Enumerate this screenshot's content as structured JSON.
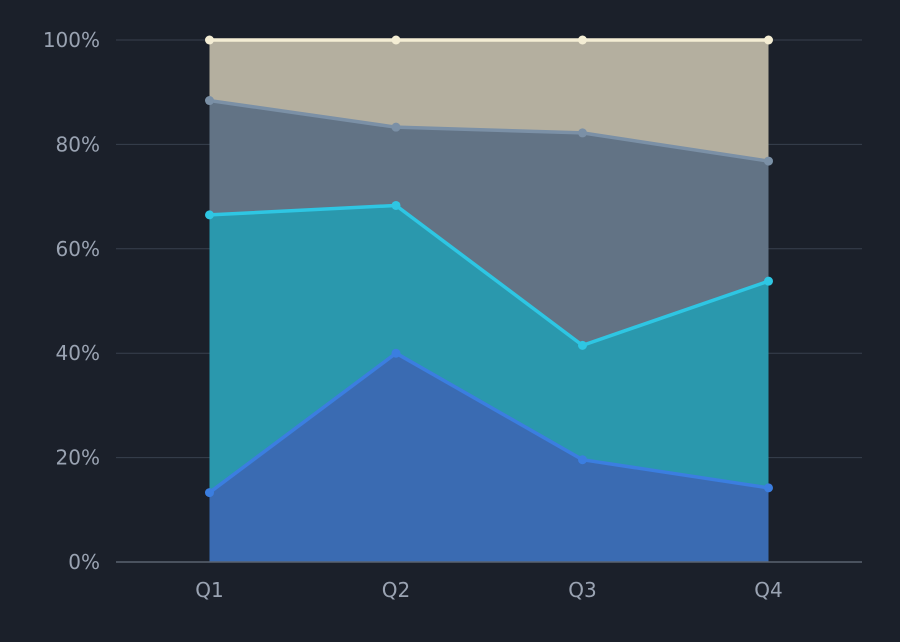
{
  "chart_data": {
    "type": "area",
    "stacked": true,
    "normalized": true,
    "categories": [
      "Q1",
      "Q2",
      "Q3",
      "Q4"
    ],
    "y_ticks": [
      "0%",
      "20%",
      "40%",
      "60%",
      "80%",
      "100%"
    ],
    "ylim": [
      0,
      100
    ],
    "grid": true,
    "legend": "none",
    "series": [
      {
        "values": [
          13.3,
          40.0,
          19.6,
          14.2
        ],
        "line_color": "#3b7ee0",
        "fill_color": "#3a6bb2"
      },
      {
        "values": [
          53.2,
          28.3,
          21.9,
          39.6
        ],
        "line_color": "#2ec6e3",
        "fill_color": "#2a98ad"
      },
      {
        "values": [
          21.9,
          15.0,
          40.7,
          23.0
        ],
        "line_color": "#7b90a6",
        "fill_color": "#627385"
      },
      {
        "values": [
          11.6,
          16.7,
          17.8,
          23.2
        ],
        "line_color": "#f4edd4",
        "fill_color": "#b4af9f"
      }
    ],
    "xlabel": "",
    "ylabel": "",
    "title": ""
  }
}
